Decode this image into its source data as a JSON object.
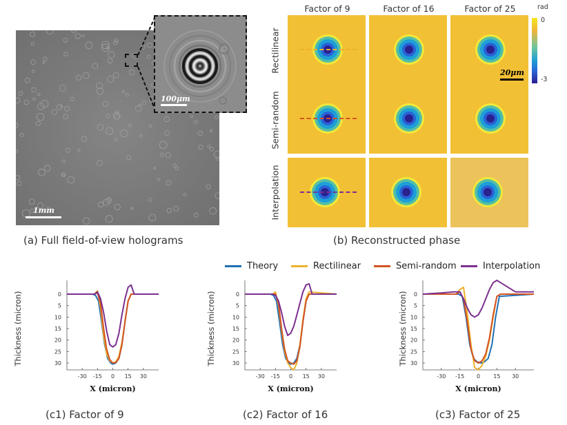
{
  "panel_a": {
    "caption": "(a) Full field-of-view holograms",
    "scale_main": "1mm",
    "scale_inset": "100μm"
  },
  "panel_b": {
    "caption": "(b) Reconstructed phase",
    "columns": [
      "Factor of 9",
      "Factor of 16",
      "Factor of 25"
    ],
    "rows": [
      "Rectilinear",
      "Semi-random",
      "Interpolation"
    ],
    "colorbar": {
      "unit": "rad",
      "max_label": "0",
      "min_label": "-3"
    },
    "scale": "20μm"
  },
  "legend": [
    {
      "name": "Theory",
      "color": "#1f6fb5"
    },
    {
      "name": "Rectilinear",
      "color": "#edb12e"
    },
    {
      "name": "Semi-random",
      "color": "#d35322"
    },
    {
      "name": "Interpolation",
      "color": "#7b2f8e"
    }
  ],
  "chart_data": [
    {
      "type": "line",
      "title": "(c1) Factor of 9",
      "xlabel": "X (micron)",
      "ylabel": "Thickness (micron)",
      "xticks": [
        -30,
        -15,
        0,
        15,
        30
      ],
      "yticks": [
        0,
        5,
        10,
        15,
        20,
        25,
        30
      ],
      "xlim": [
        -45,
        45
      ],
      "ylim": [
        -6,
        33
      ],
      "series": [
        {
          "name": "Theory",
          "x": [
            -45,
            -20,
            -17,
            -14,
            -11,
            -8,
            -5,
            -2,
            0,
            3,
            6,
            9,
            12,
            15,
            18,
            45
          ],
          "y": [
            0,
            0,
            0.5,
            3,
            12,
            22,
            28,
            30,
            30.5,
            30,
            28,
            22,
            12,
            3,
            0,
            0
          ]
        },
        {
          "name": "Rectilinear",
          "x": [
            -45,
            -18,
            -15,
            -12,
            -9,
            -6,
            -3,
            0,
            3,
            6,
            9,
            12,
            15,
            18,
            45
          ],
          "y": [
            0,
            0,
            -1.5,
            6,
            18,
            26,
            29,
            30,
            29.5,
            27,
            21,
            12,
            3,
            0,
            0
          ]
        },
        {
          "name": "Semi-random",
          "x": [
            -45,
            -18,
            -15,
            -12,
            -9,
            -6,
            -3,
            0,
            3,
            6,
            9,
            12,
            15,
            18,
            45
          ],
          "y": [
            0,
            0,
            -0.5,
            4,
            15,
            24,
            28.5,
            30,
            29.8,
            28,
            22,
            12,
            3,
            0,
            0
          ]
        },
        {
          "name": "Interpolation",
          "x": [
            -45,
            -18,
            -15,
            -12,
            -9,
            -6,
            -3,
            0,
            3,
            6,
            9,
            12,
            15,
            18,
            21,
            45
          ],
          "y": [
            0,
            0,
            -1,
            2,
            8,
            16,
            22,
            23,
            22,
            17,
            9,
            2,
            -3,
            -4,
            0,
            0
          ]
        }
      ]
    },
    {
      "type": "line",
      "title": "(c2) Factor of 16",
      "xlabel": "X (micron)",
      "ylabel": "Thickness (micron)",
      "xticks": [
        -30,
        -15,
        0,
        15,
        30
      ],
      "yticks": [
        0,
        5,
        10,
        15,
        20,
        25,
        30
      ],
      "xlim": [
        -45,
        45
      ],
      "ylim": [
        -6,
        33
      ],
      "series": [
        {
          "name": "Theory",
          "x": [
            -45,
            -20,
            -17,
            -14,
            -11,
            -8,
            -5,
            -2,
            0,
            3,
            6,
            9,
            12,
            15,
            18,
            45
          ],
          "y": [
            0,
            0,
            0.5,
            3,
            12,
            22,
            28,
            30,
            30.5,
            30,
            28,
            22,
            12,
            3,
            0,
            0
          ]
        },
        {
          "name": "Rectilinear",
          "x": [
            -45,
            -18,
            -15,
            -12,
            -9,
            -6,
            -3,
            0,
            3,
            6,
            9,
            12,
            15,
            18,
            45
          ],
          "y": [
            0,
            0,
            -1,
            5,
            16,
            25,
            30,
            32,
            33,
            30,
            22,
            11,
            2,
            -1,
            0
          ]
        },
        {
          "name": "Semi-random",
          "x": [
            -45,
            -18,
            -15,
            -12,
            -9,
            -6,
            -3,
            0,
            3,
            6,
            9,
            12,
            15,
            18,
            45
          ],
          "y": [
            0,
            0,
            0,
            4,
            15,
            24,
            29,
            30,
            30.5,
            29,
            23,
            12,
            3,
            0,
            0
          ]
        },
        {
          "name": "Interpolation",
          "x": [
            -45,
            -18,
            -15,
            -12,
            -9,
            -6,
            -3,
            0,
            3,
            6,
            9,
            12,
            15,
            18,
            21,
            45
          ],
          "y": [
            0,
            0,
            0.5,
            3,
            8,
            14,
            18,
            17,
            14,
            9,
            4,
            -1,
            -4,
            -4.5,
            0,
            0
          ]
        }
      ]
    },
    {
      "type": "line",
      "title": "(c3) Factor of 25",
      "xlabel": "X (micron)",
      "ylabel": "Thickness (micron)",
      "xticks": [
        -30,
        -15,
        0,
        15,
        30
      ],
      "yticks": [
        0,
        5,
        10,
        15,
        20,
        25,
        30
      ],
      "xlim": [
        -45,
        45
      ],
      "ylim": [
        -6,
        33
      ],
      "series": [
        {
          "name": "Theory",
          "x": [
            -45,
            -16,
            -13,
            -10,
            -7,
            -4,
            -1,
            2,
            5,
            8,
            11,
            14,
            17,
            45
          ],
          "y": [
            0,
            0,
            1,
            10,
            22,
            28,
            29.5,
            30,
            29.5,
            28,
            22,
            10,
            1,
            0
          ]
        },
        {
          "name": "Rectilinear",
          "x": [
            -45,
            -18,
            -15,
            -12,
            -9,
            -6,
            -3,
            0,
            3,
            6,
            9,
            12,
            15,
            18,
            45
          ],
          "y": [
            0,
            0,
            -2,
            -3,
            8,
            22,
            32,
            33,
            31,
            27,
            20,
            10,
            1,
            0,
            0
          ]
        },
        {
          "name": "Semi-random",
          "x": [
            -45,
            -18,
            -15,
            -12,
            -9,
            -6,
            -3,
            0,
            3,
            6,
            9,
            12,
            15,
            18,
            45
          ],
          "y": [
            0,
            0,
            -1,
            2,
            12,
            24,
            29,
            30,
            29,
            26,
            19,
            9,
            1,
            0,
            0
          ]
        },
        {
          "name": "Interpolation",
          "x": [
            -45,
            -30,
            -20,
            -15,
            -12,
            -9,
            -6,
            -3,
            0,
            3,
            6,
            9,
            12,
            15,
            18,
            30,
            45
          ],
          "y": [
            0,
            -0.5,
            -1,
            -1,
            2,
            6,
            9,
            10,
            9,
            6,
            2,
            -2,
            -5,
            -6,
            -5,
            -1,
            -1
          ]
        }
      ]
    }
  ],
  "captions_c": [
    "(c1) Factor of 9",
    "(c2) Factor of 16",
    "(c3) Factor of 25"
  ]
}
